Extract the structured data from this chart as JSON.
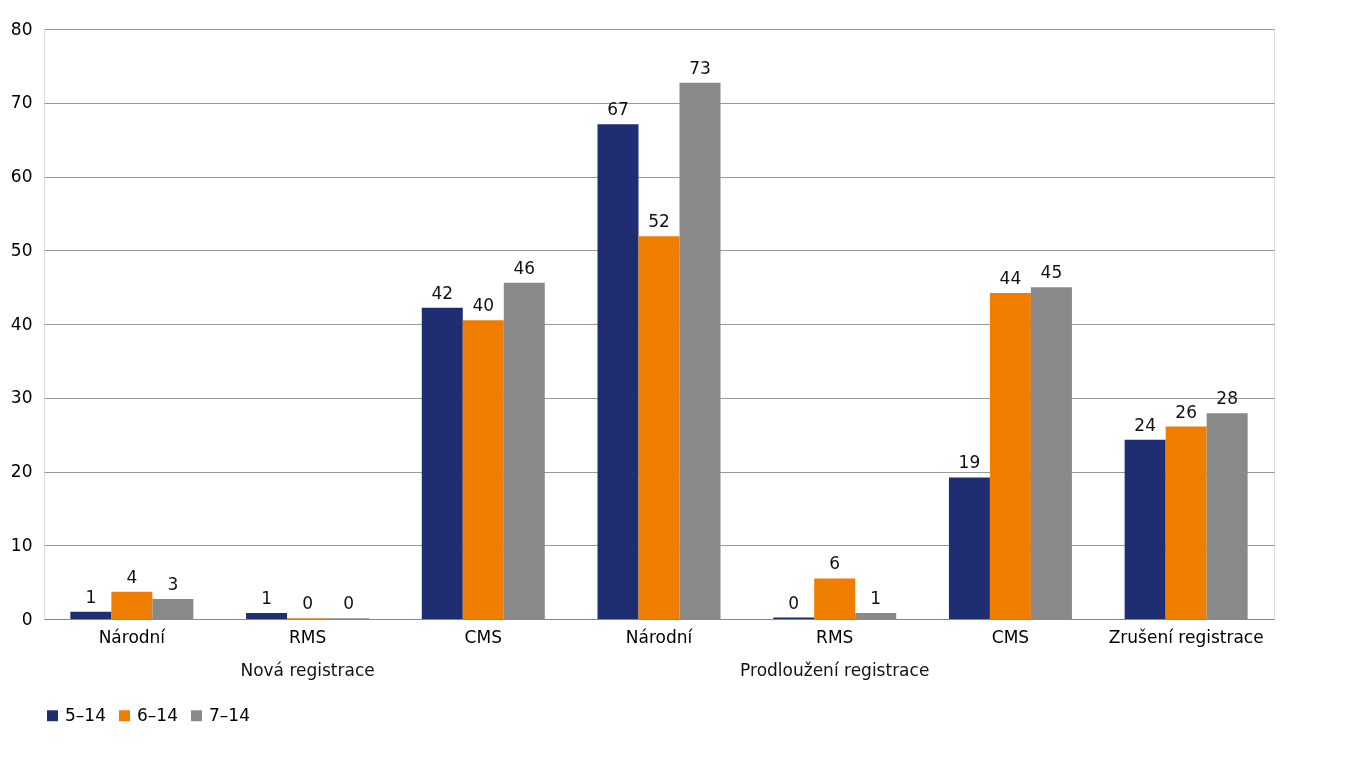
{
  "chart_data": {
    "type": "bar",
    "categories": [
      "Národní",
      "RMS",
      "CMS",
      "Národní",
      "RMS",
      "CMS",
      "Zrušení registrace"
    ],
    "series": [
      {
        "name": "5–14",
        "color": "#1f2d73",
        "values": [
          1.0,
          0.8,
          42.2,
          67.1,
          0.2,
          19.2,
          24.3
        ],
        "value_labels": [
          "1",
          "1",
          "42",
          "67",
          "0",
          "19",
          "24"
        ]
      },
      {
        "name": "6–14",
        "color": "#ef7d00",
        "values": [
          3.7,
          0.1,
          40.5,
          51.9,
          5.5,
          44.2,
          26.1
        ],
        "value_labels": [
          "4",
          "0",
          "40",
          "52",
          "6",
          "44",
          "26"
        ]
      },
      {
        "name": "7–14",
        "color": "#898989",
        "values": [
          2.7,
          0.1,
          45.6,
          72.7,
          0.8,
          45.0,
          27.9
        ],
        "value_labels": [
          "3",
          "0",
          "46",
          "73",
          "1",
          "45",
          "28"
        ]
      }
    ],
    "annotations": [
      "Nová registrace",
      "Prodloužení registrace"
    ],
    "ylim": [
      0,
      80
    ],
    "yticks": [
      0,
      10,
      20,
      30,
      40,
      50,
      60,
      70,
      80
    ],
    "grid": "y",
    "legend": "bottom"
  }
}
